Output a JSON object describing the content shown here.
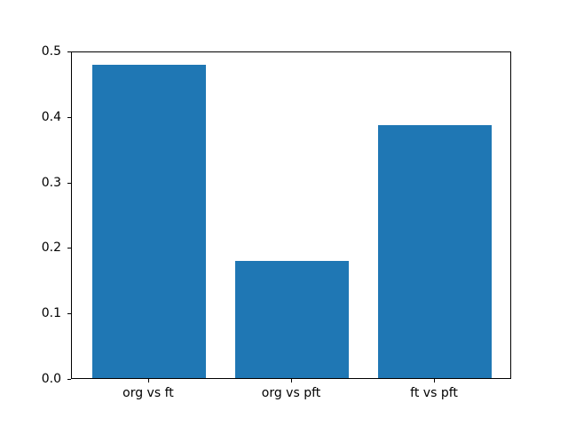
{
  "chart_data": {
    "type": "bar",
    "categories": [
      "org vs ft",
      "org vs pft",
      "ft vs pft"
    ],
    "values": [
      0.479,
      0.179,
      0.386
    ],
    "title": "",
    "xlabel": "",
    "ylabel": "",
    "ylim": [
      0,
      0.5
    ],
    "yticks": [
      0.0,
      0.1,
      0.2,
      0.3,
      0.4,
      0.5
    ],
    "ytick_labels": [
      "0.0",
      "0.1",
      "0.2",
      "0.3",
      "0.4",
      "0.5"
    ],
    "bar_color": "#1f77b4",
    "bar_width": 0.8,
    "grid": false,
    "legend_position": null
  }
}
